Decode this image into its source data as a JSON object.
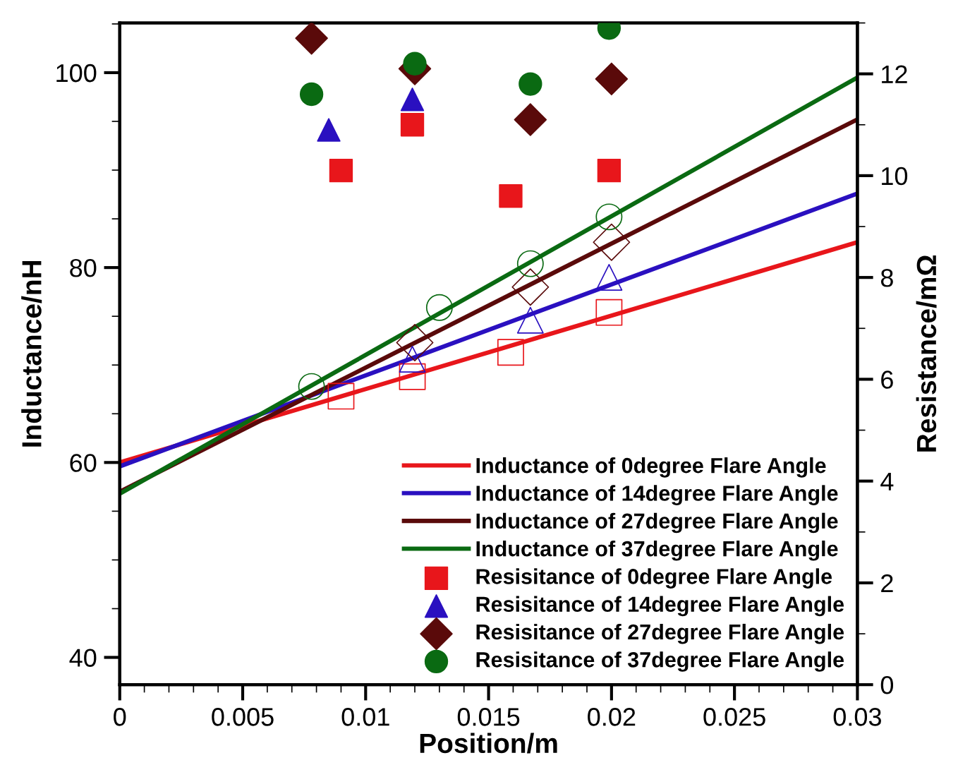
{
  "chart_data": {
    "type": "line",
    "xlabel": "Position/m",
    "ylabel": "Inductance/nH",
    "y2label": "Resistance/mΩ",
    "xlim": [
      0,
      0.03
    ],
    "xticks": [
      0,
      0.005,
      0.01,
      0.015,
      0.02,
      0.025,
      0.03
    ],
    "ylim": [
      37.2,
      105.1
    ],
    "yticks": [
      40,
      60,
      80,
      100
    ],
    "y2lim": [
      0,
      13.0
    ],
    "y2ticks": [
      0,
      2,
      4,
      6,
      8,
      10,
      12
    ],
    "grid": false,
    "legend": "bottom right",
    "series": [
      {
        "name": "Inductance of 0degree Flare Angle",
        "color": "#e8161b",
        "x": [
          0,
          0.03
        ],
        "values": [
          60.0,
          82.6
        ]
      },
      {
        "type": "scatter",
        "marker": "square",
        "color": "#e8161b",
        "x": [
          0.009,
          0.0119,
          0.0159,
          0.0199
        ],
        "values": [
          66.8,
          68.8,
          71.3,
          75.4
        ]
      },
      {
        "name": "Inductance of 14degree Flare Angle",
        "color": "#2a10c0",
        "x": [
          0,
          0.03
        ],
        "values": [
          59.6,
          87.6
        ]
      },
      {
        "type": "scatter",
        "marker": "triangle",
        "color": "#2a10c0",
        "x": [
          0.0119,
          0.0167,
          0.0199
        ],
        "values": [
          70.6,
          74.6,
          79.0
        ]
      },
      {
        "name": "Inductance of 27degree Flare Angle",
        "color": "#5a0a0a",
        "x": [
          0,
          0.03
        ],
        "values": [
          57.0,
          95.2
        ]
      },
      {
        "type": "scatter",
        "marker": "diamond",
        "color": "#5a0a0a",
        "x": [
          0.012,
          0.0167,
          0.02
        ],
        "values": [
          72.3,
          78.0,
          82.6
        ]
      },
      {
        "name": "Inductance of 37degree Flare Angle",
        "color": "#0a6a12",
        "x": [
          0,
          0.03
        ],
        "values": [
          56.8,
          99.5
        ]
      },
      {
        "type": "scatter",
        "marker": "circle",
        "color": "#0a6a12",
        "x": [
          0.0078,
          0.013,
          0.0167,
          0.0199
        ],
        "values": [
          67.8,
          75.9,
          80.4,
          85.2
        ]
      },
      {
        "name": "Resisitance of 0degree Flare Angle",
        "type": "scatter",
        "axis": "y2",
        "marker": "square",
        "color": "#e8161b",
        "x": [
          0.009,
          0.0119,
          0.0159,
          0.0199
        ],
        "values": [
          10.1,
          11.0,
          9.6,
          10.1
        ]
      },
      {
        "name": "Resisitance of 14degree Flare Angle",
        "type": "scatter",
        "axis": "y2",
        "marker": "triangle",
        "color": "#2a10c0",
        "x": [
          0.0085,
          0.0119
        ],
        "values": [
          10.9,
          11.5
        ]
      },
      {
        "name": "Resisitance of 27degree Flare Angle",
        "type": "scatter",
        "axis": "y2",
        "marker": "diamond",
        "color": "#5a0a0a",
        "x": [
          0.0078,
          0.012,
          0.0167,
          0.02
        ],
        "values": [
          12.7,
          12.1,
          11.1,
          11.9
        ]
      },
      {
        "name": "Resisitance of 37degree Flare Angle",
        "type": "scatter",
        "axis": "y2",
        "marker": "circle",
        "color": "#0a6a12",
        "x": [
          0.0078,
          0.012,
          0.0167,
          0.0199
        ],
        "values": [
          11.6,
          12.2,
          11.8,
          12.9
        ]
      }
    ]
  }
}
